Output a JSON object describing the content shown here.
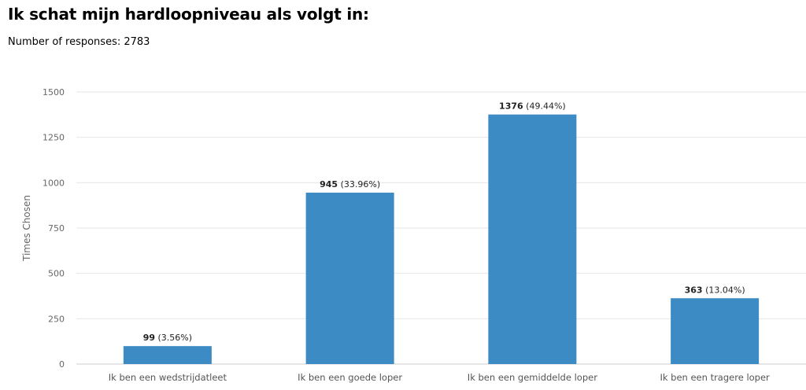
{
  "chart_data": {
    "type": "bar",
    "title": "Ik schat mijn hardloopniveau als volgt in:",
    "subtitle": "Number of responses: 2783",
    "ylabel": "Times Chosen",
    "xlabel": "",
    "categories": [
      "Ik ben een wedstrijdatleet",
      "Ik ben een goede loper",
      "Ik ben een gemiddelde loper",
      "Ik ben een tragere loper"
    ],
    "values": [
      99,
      945,
      1376,
      363
    ],
    "data_labels": [
      {
        "count": "99",
        "pct": "(3.56%)"
      },
      {
        "count": "945",
        "pct": "(33.96%)"
      },
      {
        "count": "1376",
        "pct": "(49.44%)"
      },
      {
        "count": "363",
        "pct": "(13.04%)"
      }
    ],
    "yticks": [
      0,
      250,
      500,
      750,
      1000,
      1250,
      1500
    ],
    "ylim": [
      0,
      1500
    ],
    "grid": true,
    "bar_color": "#3d8bc4",
    "grid_color": "#e6e6e6",
    "axis_color": "#cccccc"
  }
}
